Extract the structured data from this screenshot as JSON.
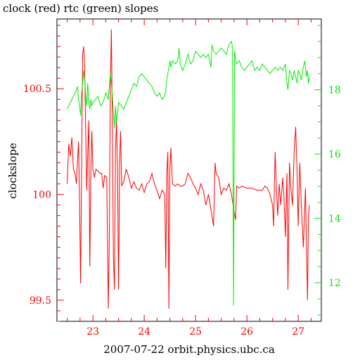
{
  "chart_data": {
    "type": "line",
    "title": "clock (red) rtc (green) slopes",
    "xlabel": "2007-07-22 orbit.physics.ubc.ca",
    "ylabel": "clockslope",
    "y2label": "",
    "xlim": [
      22.3,
      27.45
    ],
    "ylim": [
      99.4,
      100.83
    ],
    "y2lim": [
      10.8,
      20.2
    ],
    "x_ticks": [
      23,
      24,
      25,
      26,
      27
    ],
    "y_ticks": [
      99.5,
      100,
      100.5
    ],
    "y2_ticks": [
      12,
      14,
      16,
      18
    ],
    "x_tick_labels": [
      "23",
      "24",
      "25",
      "26",
      "27"
    ],
    "y_tick_labels": [
      "99.5",
      "100",
      "100.5"
    ],
    "y2_tick_labels": [
      "12",
      "14",
      "16",
      "18"
    ],
    "grid": false,
    "colors": {
      "clock": "#ff0000",
      "rtc": "#00ee00",
      "axis": "#000000"
    },
    "series": [
      {
        "axis": "left",
        "color": "#ff0000",
        "points": [
          [
            22.5,
            100.05
          ],
          [
            22.53,
            100.24
          ],
          [
            22.56,
            100.18
          ],
          [
            22.59,
            100.27
          ],
          [
            22.62,
            100.12
          ],
          [
            22.65,
            100.1
          ],
          [
            22.68,
            100.05
          ],
          [
            22.7,
            100.16
          ],
          [
            22.72,
            100.25
          ],
          [
            22.74,
            99.98
          ],
          [
            22.76,
            99.58
          ],
          [
            22.78,
            100.1
          ],
          [
            22.8,
            100.66
          ],
          [
            22.82,
            100.7
          ],
          [
            22.84,
            100.6
          ],
          [
            22.86,
            100.3
          ],
          [
            22.88,
            100.02
          ],
          [
            22.9,
            100.2
          ],
          [
            22.92,
            100.35
          ],
          [
            22.94,
            99.66
          ],
          [
            22.96,
            100.1
          ],
          [
            22.98,
            100.3
          ],
          [
            23.0,
            100.12
          ],
          [
            23.03,
            100.08
          ],
          [
            23.06,
            100.12
          ],
          [
            23.1,
            100.11
          ],
          [
            23.14,
            100.1
          ],
          [
            23.17,
            100.1
          ],
          [
            23.2,
            100.03
          ],
          [
            23.23,
            100.09
          ],
          [
            23.27,
            100.08
          ],
          [
            23.3,
            99.46
          ],
          [
            23.32,
            99.8
          ],
          [
            23.34,
            100.5
          ],
          [
            23.36,
            100.78
          ],
          [
            23.38,
            100.3
          ],
          [
            23.4,
            99.7
          ],
          [
            23.42,
            99.55
          ],
          [
            23.44,
            100.2
          ],
          [
            23.46,
            100.35
          ],
          [
            23.48,
            100.1
          ],
          [
            23.5,
            99.55
          ],
          [
            23.52,
            100.15
          ],
          [
            23.54,
            100.3
          ],
          [
            23.56,
            100.04
          ],
          [
            23.6,
            100.06
          ],
          [
            23.65,
            100.12
          ],
          [
            23.7,
            100.08
          ],
          [
            23.75,
            100.03
          ],
          [
            23.8,
            100.06
          ],
          [
            23.85,
            100.03
          ],
          [
            23.9,
            100.02
          ],
          [
            23.95,
            100.05
          ],
          [
            24.0,
            100.01
          ],
          [
            24.05,
            100.05
          ],
          [
            24.1,
            100.06
          ],
          [
            24.15,
            100.1
          ],
          [
            24.2,
            100.05
          ],
          [
            24.25,
            100.02
          ],
          [
            24.3,
            99.98
          ],
          [
            24.35,
            100.02
          ],
          [
            24.4,
            100.0
          ],
          [
            24.42,
            99.65
          ],
          [
            24.44,
            100.1
          ],
          [
            24.46,
            100.2
          ],
          [
            24.48,
            99.46
          ],
          [
            24.5,
            100.12
          ],
          [
            24.52,
            100.22
          ],
          [
            24.55,
            100.05
          ],
          [
            24.6,
            100.04
          ],
          [
            24.65,
            100.05
          ],
          [
            24.7,
            100.04
          ],
          [
            24.75,
            100.04
          ],
          [
            24.8,
            100.05
          ],
          [
            24.85,
            100.1
          ],
          [
            24.9,
            100.08
          ],
          [
            24.95,
            100.05
          ],
          [
            25.0,
            100.03
          ],
          [
            25.05,
            100.0
          ],
          [
            25.1,
            100.05
          ],
          [
            25.15,
            100.02
          ],
          [
            25.2,
            99.95
          ],
          [
            25.25,
            100.0
          ],
          [
            25.3,
            99.93
          ],
          [
            25.35,
            99.85
          ],
          [
            25.38,
            100.15
          ],
          [
            25.4,
            100.1
          ],
          [
            25.45,
            100.08
          ],
          [
            25.5,
            100.0
          ],
          [
            25.55,
            100.03
          ],
          [
            25.6,
            100.02
          ],
          [
            25.65,
            100.05
          ],
          [
            25.7,
            100.0
          ],
          [
            25.75,
            99.92
          ],
          [
            25.78,
            99.88
          ],
          [
            25.8,
            100.04
          ],
          [
            25.85,
            100.03
          ],
          [
            25.9,
            100.04
          ],
          [
            26.0,
            100.03
          ],
          [
            26.1,
            100.03
          ],
          [
            26.2,
            100.02
          ],
          [
            26.3,
            100.02
          ],
          [
            26.35,
            100.04
          ],
          [
            26.4,
            100.03
          ],
          [
            26.45,
            100.0
          ],
          [
            26.5,
            99.95
          ],
          [
            26.52,
            99.85
          ],
          [
            26.55,
            100.2
          ],
          [
            26.58,
            100.0
          ],
          [
            26.6,
            99.9
          ],
          [
            26.63,
            100.05
          ],
          [
            26.66,
            99.95
          ],
          [
            26.7,
            100.08
          ],
          [
            26.72,
            100.0
          ],
          [
            26.75,
            99.8
          ],
          [
            26.78,
            100.1
          ],
          [
            26.8,
            99.55
          ],
          [
            26.83,
            100.15
          ],
          [
            26.86,
            100.02
          ],
          [
            26.89,
            99.95
          ],
          [
            26.92,
            100.2
          ],
          [
            26.95,
            100.32
          ],
          [
            26.98,
            100.08
          ],
          [
            27.0,
            99.85
          ],
          [
            27.03,
            100.15
          ],
          [
            27.06,
            99.95
          ],
          [
            27.1,
            99.75
          ],
          [
            27.14,
            100.03
          ],
          [
            27.18,
            99.5
          ],
          [
            27.2,
            99.9
          ],
          [
            27.22,
            99.95
          ]
        ]
      },
      {
        "axis": "right",
        "color": "#00ee00",
        "points": [
          [
            22.5,
            17.4
          ],
          [
            22.53,
            17.5
          ],
          [
            22.56,
            17.6
          ],
          [
            22.59,
            17.7
          ],
          [
            22.62,
            17.8
          ],
          [
            22.65,
            17.9
          ],
          [
            22.68,
            18.0
          ],
          [
            22.7,
            18.1
          ],
          [
            22.72,
            17.7
          ],
          [
            22.74,
            17.5
          ],
          [
            22.76,
            17.2
          ],
          [
            22.78,
            17.9
          ],
          [
            22.8,
            18.2
          ],
          [
            22.82,
            18.6
          ],
          [
            22.84,
            18.3
          ],
          [
            22.86,
            17.8
          ],
          [
            22.88,
            17.5
          ],
          [
            22.9,
            18.2
          ],
          [
            22.92,
            17.6
          ],
          [
            22.94,
            17.4
          ],
          [
            22.96,
            17.7
          ],
          [
            22.98,
            17.5
          ],
          [
            23.0,
            17.6
          ],
          [
            23.05,
            17.7
          ],
          [
            23.1,
            17.8
          ],
          [
            23.15,
            17.5
          ],
          [
            23.2,
            17.6
          ],
          [
            23.25,
            17.9
          ],
          [
            23.3,
            17.7
          ],
          [
            23.34,
            18.5
          ],
          [
            23.36,
            18.2
          ],
          [
            23.38,
            17.8
          ],
          [
            23.42,
            16.8
          ],
          [
            23.44,
            17.5
          ],
          [
            23.46,
            17.0
          ],
          [
            23.5,
            17.6
          ],
          [
            23.55,
            17.5
          ],
          [
            23.6,
            17.4
          ],
          [
            23.65,
            17.6
          ],
          [
            23.7,
            17.8
          ],
          [
            23.75,
            18.0
          ],
          [
            23.8,
            18.2
          ],
          [
            23.85,
            18.1
          ],
          [
            23.9,
            18.4
          ],
          [
            23.95,
            18.5
          ],
          [
            24.0,
            18.4
          ],
          [
            24.05,
            18.3
          ],
          [
            24.1,
            18.2
          ],
          [
            24.15,
            18.1
          ],
          [
            24.2,
            17.9
          ],
          [
            24.25,
            17.8
          ],
          [
            24.3,
            17.9
          ],
          [
            24.35,
            17.7
          ],
          [
            24.4,
            17.8
          ],
          [
            24.42,
            18.0
          ],
          [
            24.44,
            18.3
          ],
          [
            24.47,
            18.6
          ],
          [
            24.5,
            18.9
          ],
          [
            24.52,
            18.7
          ],
          [
            24.55,
            18.9
          ],
          [
            24.6,
            18.8
          ],
          [
            24.65,
            18.9
          ],
          [
            24.68,
            19.3
          ],
          [
            24.7,
            18.8
          ],
          [
            24.75,
            18.6
          ],
          [
            24.8,
            18.8
          ],
          [
            24.85,
            19.1
          ],
          [
            24.9,
            18.8
          ],
          [
            24.95,
            18.9
          ],
          [
            25.0,
            19.2
          ],
          [
            25.05,
            19.1
          ],
          [
            25.1,
            19.0
          ],
          [
            25.15,
            19.1
          ],
          [
            25.2,
            19.0
          ],
          [
            25.25,
            19.1
          ],
          [
            25.3,
            18.7
          ],
          [
            25.32,
            19.4
          ],
          [
            25.35,
            19.2
          ],
          [
            25.4,
            19.1
          ],
          [
            25.45,
            19.2
          ],
          [
            25.5,
            19.3
          ],
          [
            25.55,
            19.2
          ],
          [
            25.6,
            19.1
          ],
          [
            25.65,
            19.4
          ],
          [
            25.7,
            19.5
          ],
          [
            25.72,
            19.3
          ],
          [
            25.74,
            11.3
          ],
          [
            25.76,
            19.2
          ],
          [
            25.8,
            18.8
          ],
          [
            25.85,
            18.9
          ],
          [
            25.9,
            18.7
          ],
          [
            25.95,
            18.6
          ],
          [
            26.0,
            18.7
          ],
          [
            26.05,
            18.8
          ],
          [
            26.1,
            18.9
          ],
          [
            26.15,
            18.6
          ],
          [
            26.2,
            18.7
          ],
          [
            26.25,
            18.6
          ],
          [
            26.3,
            18.8
          ],
          [
            26.35,
            18.7
          ],
          [
            26.4,
            18.6
          ],
          [
            26.45,
            18.5
          ],
          [
            26.5,
            18.6
          ],
          [
            26.55,
            18.7
          ],
          [
            26.6,
            18.6
          ],
          [
            26.65,
            18.7
          ],
          [
            26.7,
            18.6
          ],
          [
            26.75,
            18.8
          ],
          [
            26.78,
            18.2
          ],
          [
            26.8,
            18.0
          ],
          [
            26.83,
            18.6
          ],
          [
            26.86,
            18.5
          ],
          [
            26.89,
            18.3
          ],
          [
            26.92,
            18.6
          ],
          [
            26.95,
            18.4
          ],
          [
            26.98,
            18.2
          ],
          [
            27.0,
            18.6
          ],
          [
            27.03,
            18.5
          ],
          [
            27.06,
            18.3
          ],
          [
            27.1,
            18.7
          ],
          [
            27.13,
            18.9
          ],
          [
            27.16,
            18.4
          ],
          [
            27.18,
            18.6
          ],
          [
            27.2,
            18.2
          ],
          [
            27.22,
            18.4
          ]
        ]
      }
    ]
  }
}
